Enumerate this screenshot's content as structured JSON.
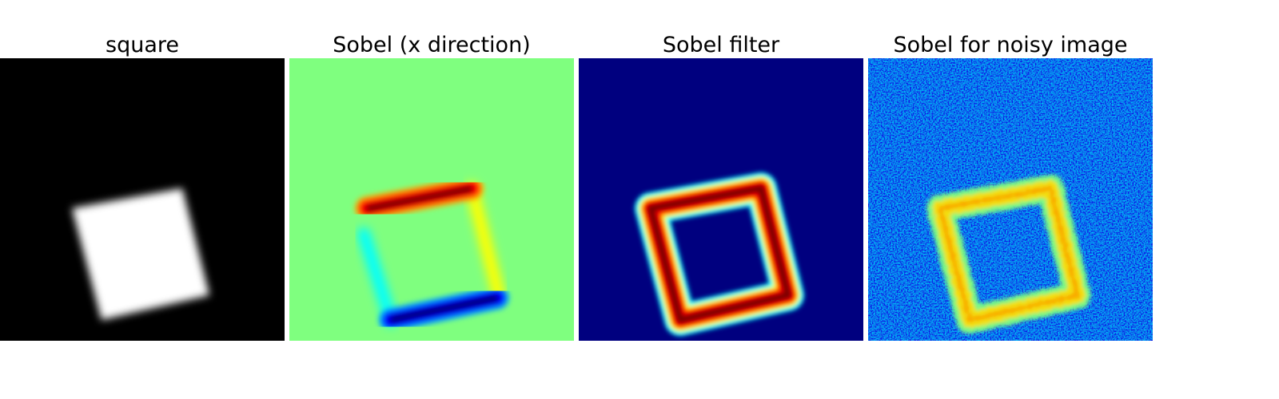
{
  "figure": {
    "panels": [
      {
        "title": "square",
        "colormap": "gray"
      },
      {
        "title": "Sobel (x direction)",
        "colormap": "jet"
      },
      {
        "title": "Sobel filter",
        "colormap": "jet"
      },
      {
        "title": "Sobel for noisy image",
        "colormap": "jet"
      }
    ]
  },
  "colors": {
    "background": "#ffffff",
    "black": "#000000",
    "white": "#ffffff",
    "jet_dark_blue": "#00007f",
    "jet_blue": "#0000ff",
    "jet_cyan": "#00ffff",
    "jet_green": "#7fff7f",
    "jet_yellow": "#ffff00",
    "jet_red": "#ff0000",
    "jet_dark_red": "#7f0000"
  }
}
